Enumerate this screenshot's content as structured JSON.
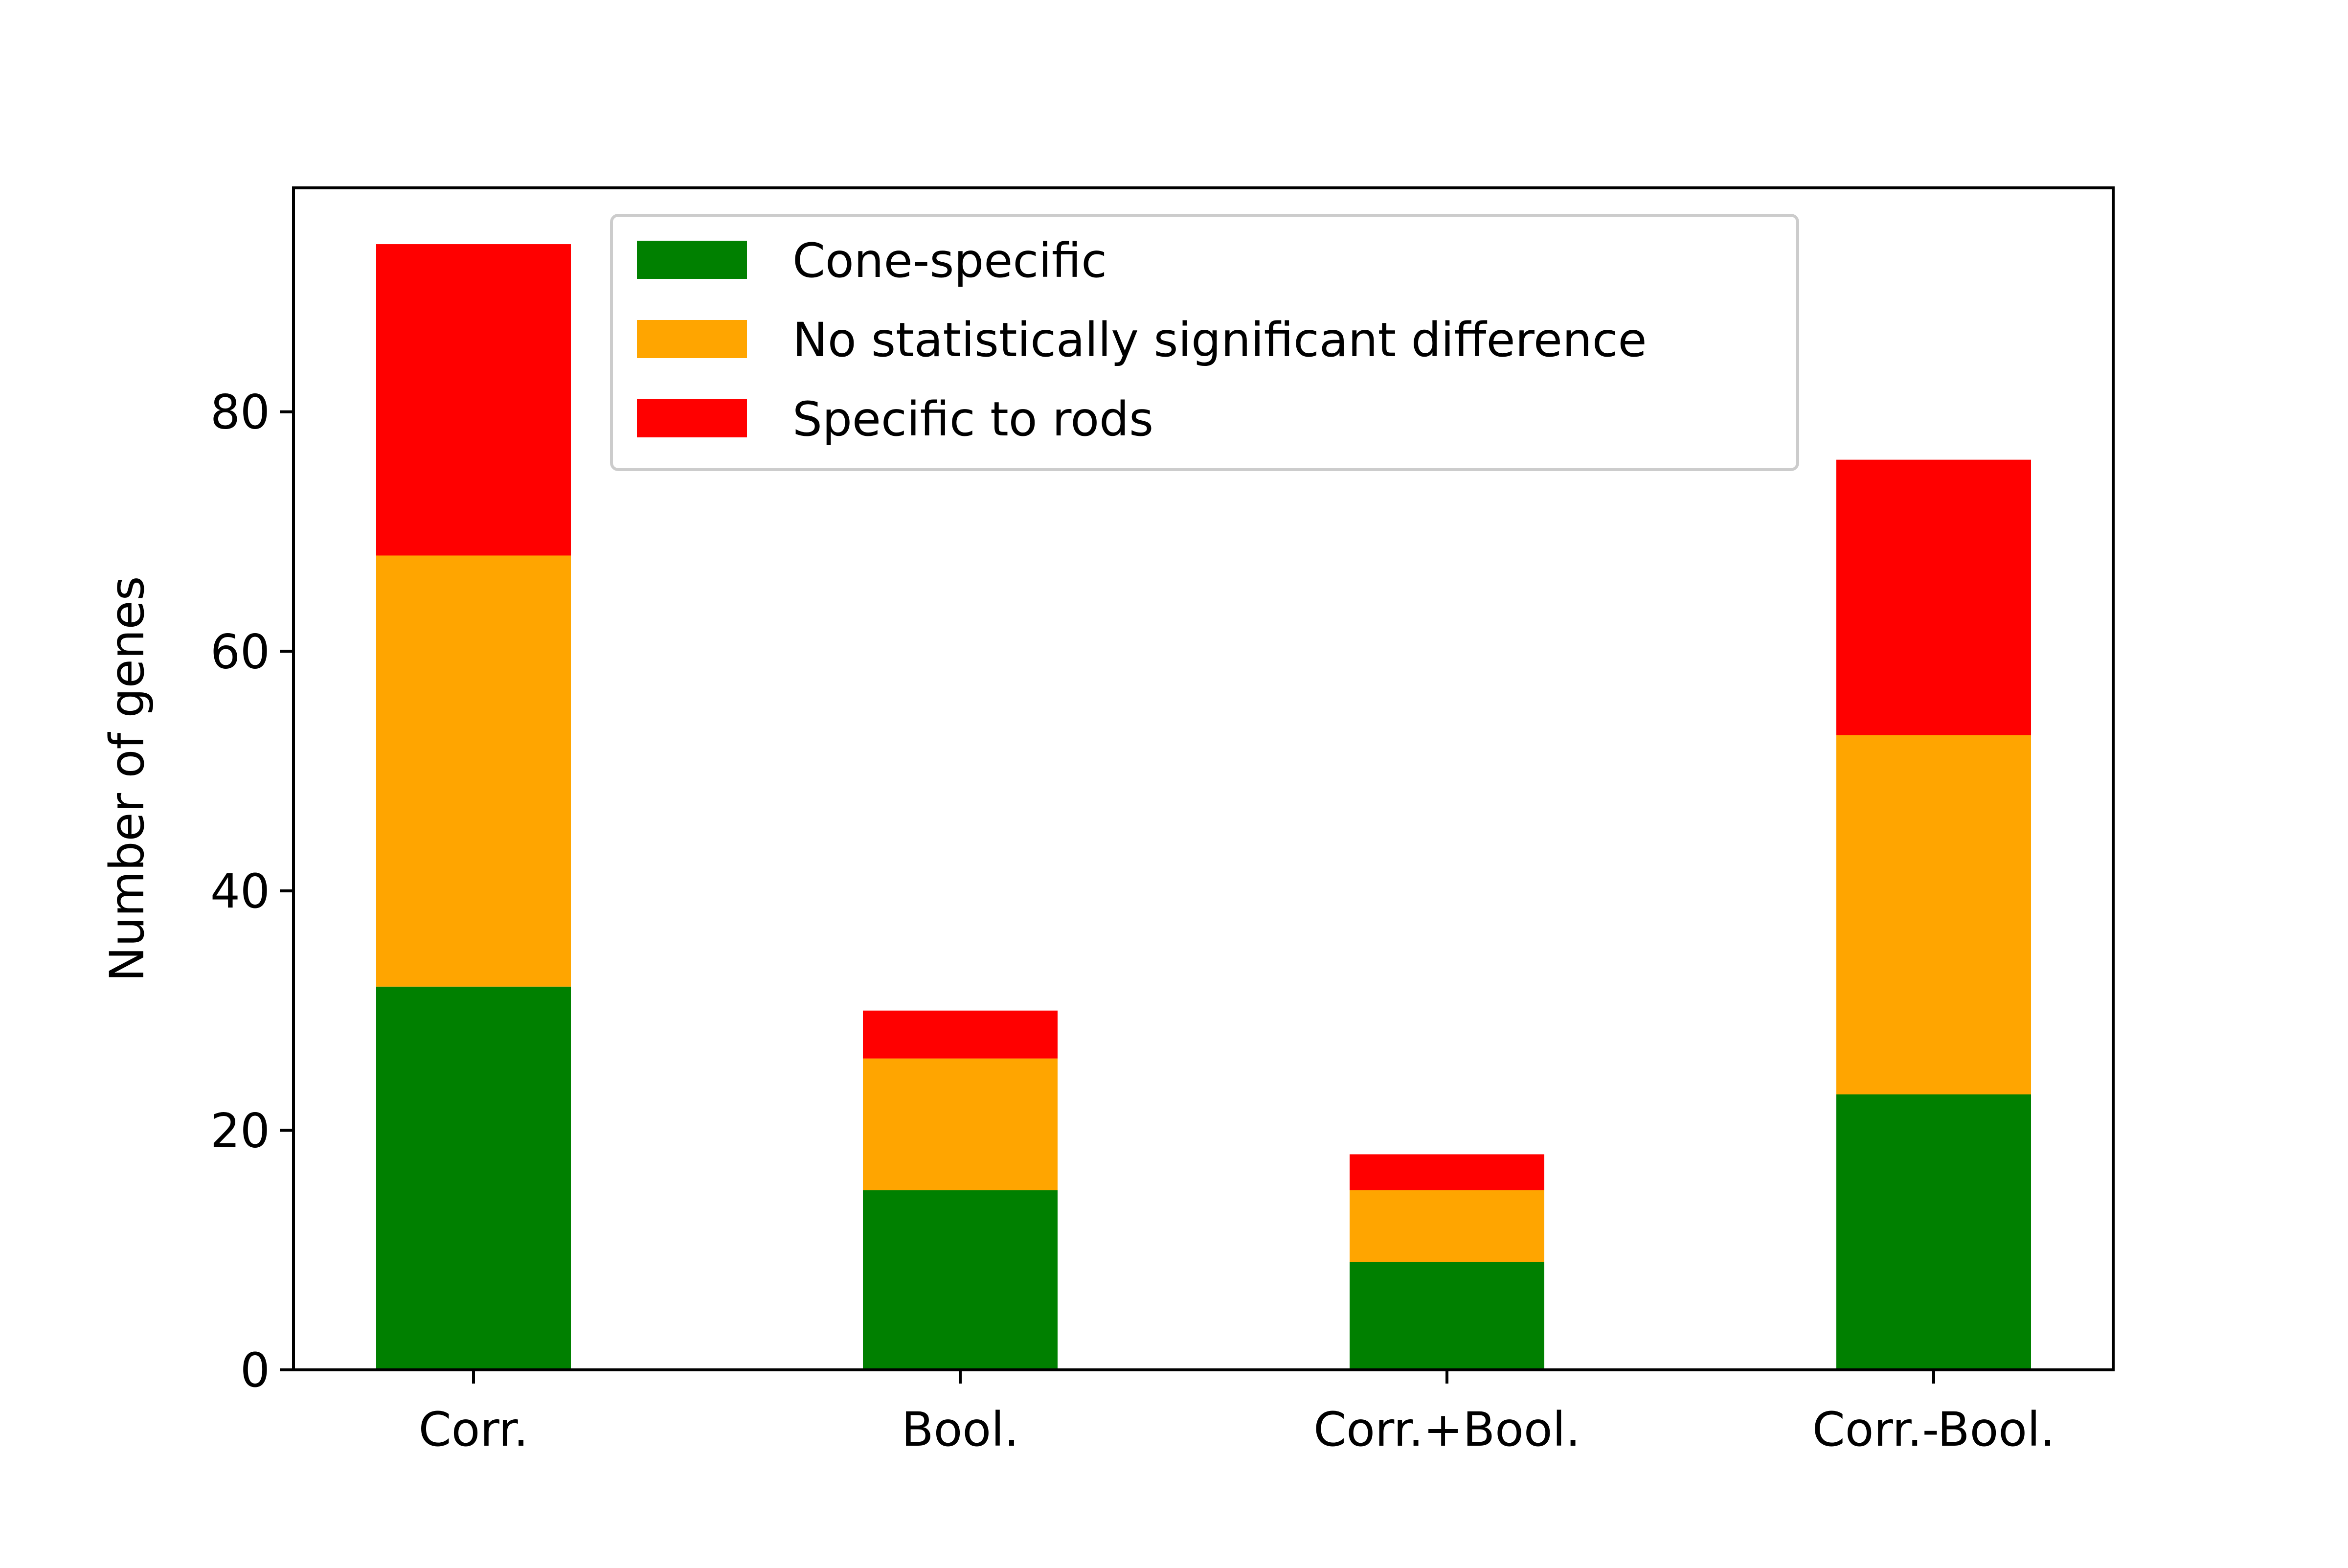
{
  "chart_data": {
    "type": "bar",
    "stacked": true,
    "categories": [
      "Corr.",
      "Bool.",
      "Corr.+Bool.",
      "Corr.-Bool."
    ],
    "series": [
      {
        "name": "Cone-specific",
        "color": "#008000",
        "values": [
          32,
          15,
          9,
          23
        ]
      },
      {
        "name": "No statistically significant difference",
        "color": "#FFA500",
        "values": [
          36,
          11,
          6,
          30
        ]
      },
      {
        "name": "Specific to rods",
        "color": "#FF0000",
        "values": [
          26,
          4,
          3,
          23
        ]
      }
    ],
    "ylabel": "Number of genes",
    "xlabel": "",
    "title": "",
    "ylim": [
      0,
      98.7
    ],
    "yticks": [
      0,
      20,
      40,
      60,
      80
    ],
    "grid": false,
    "legend_position": "top-center"
  }
}
